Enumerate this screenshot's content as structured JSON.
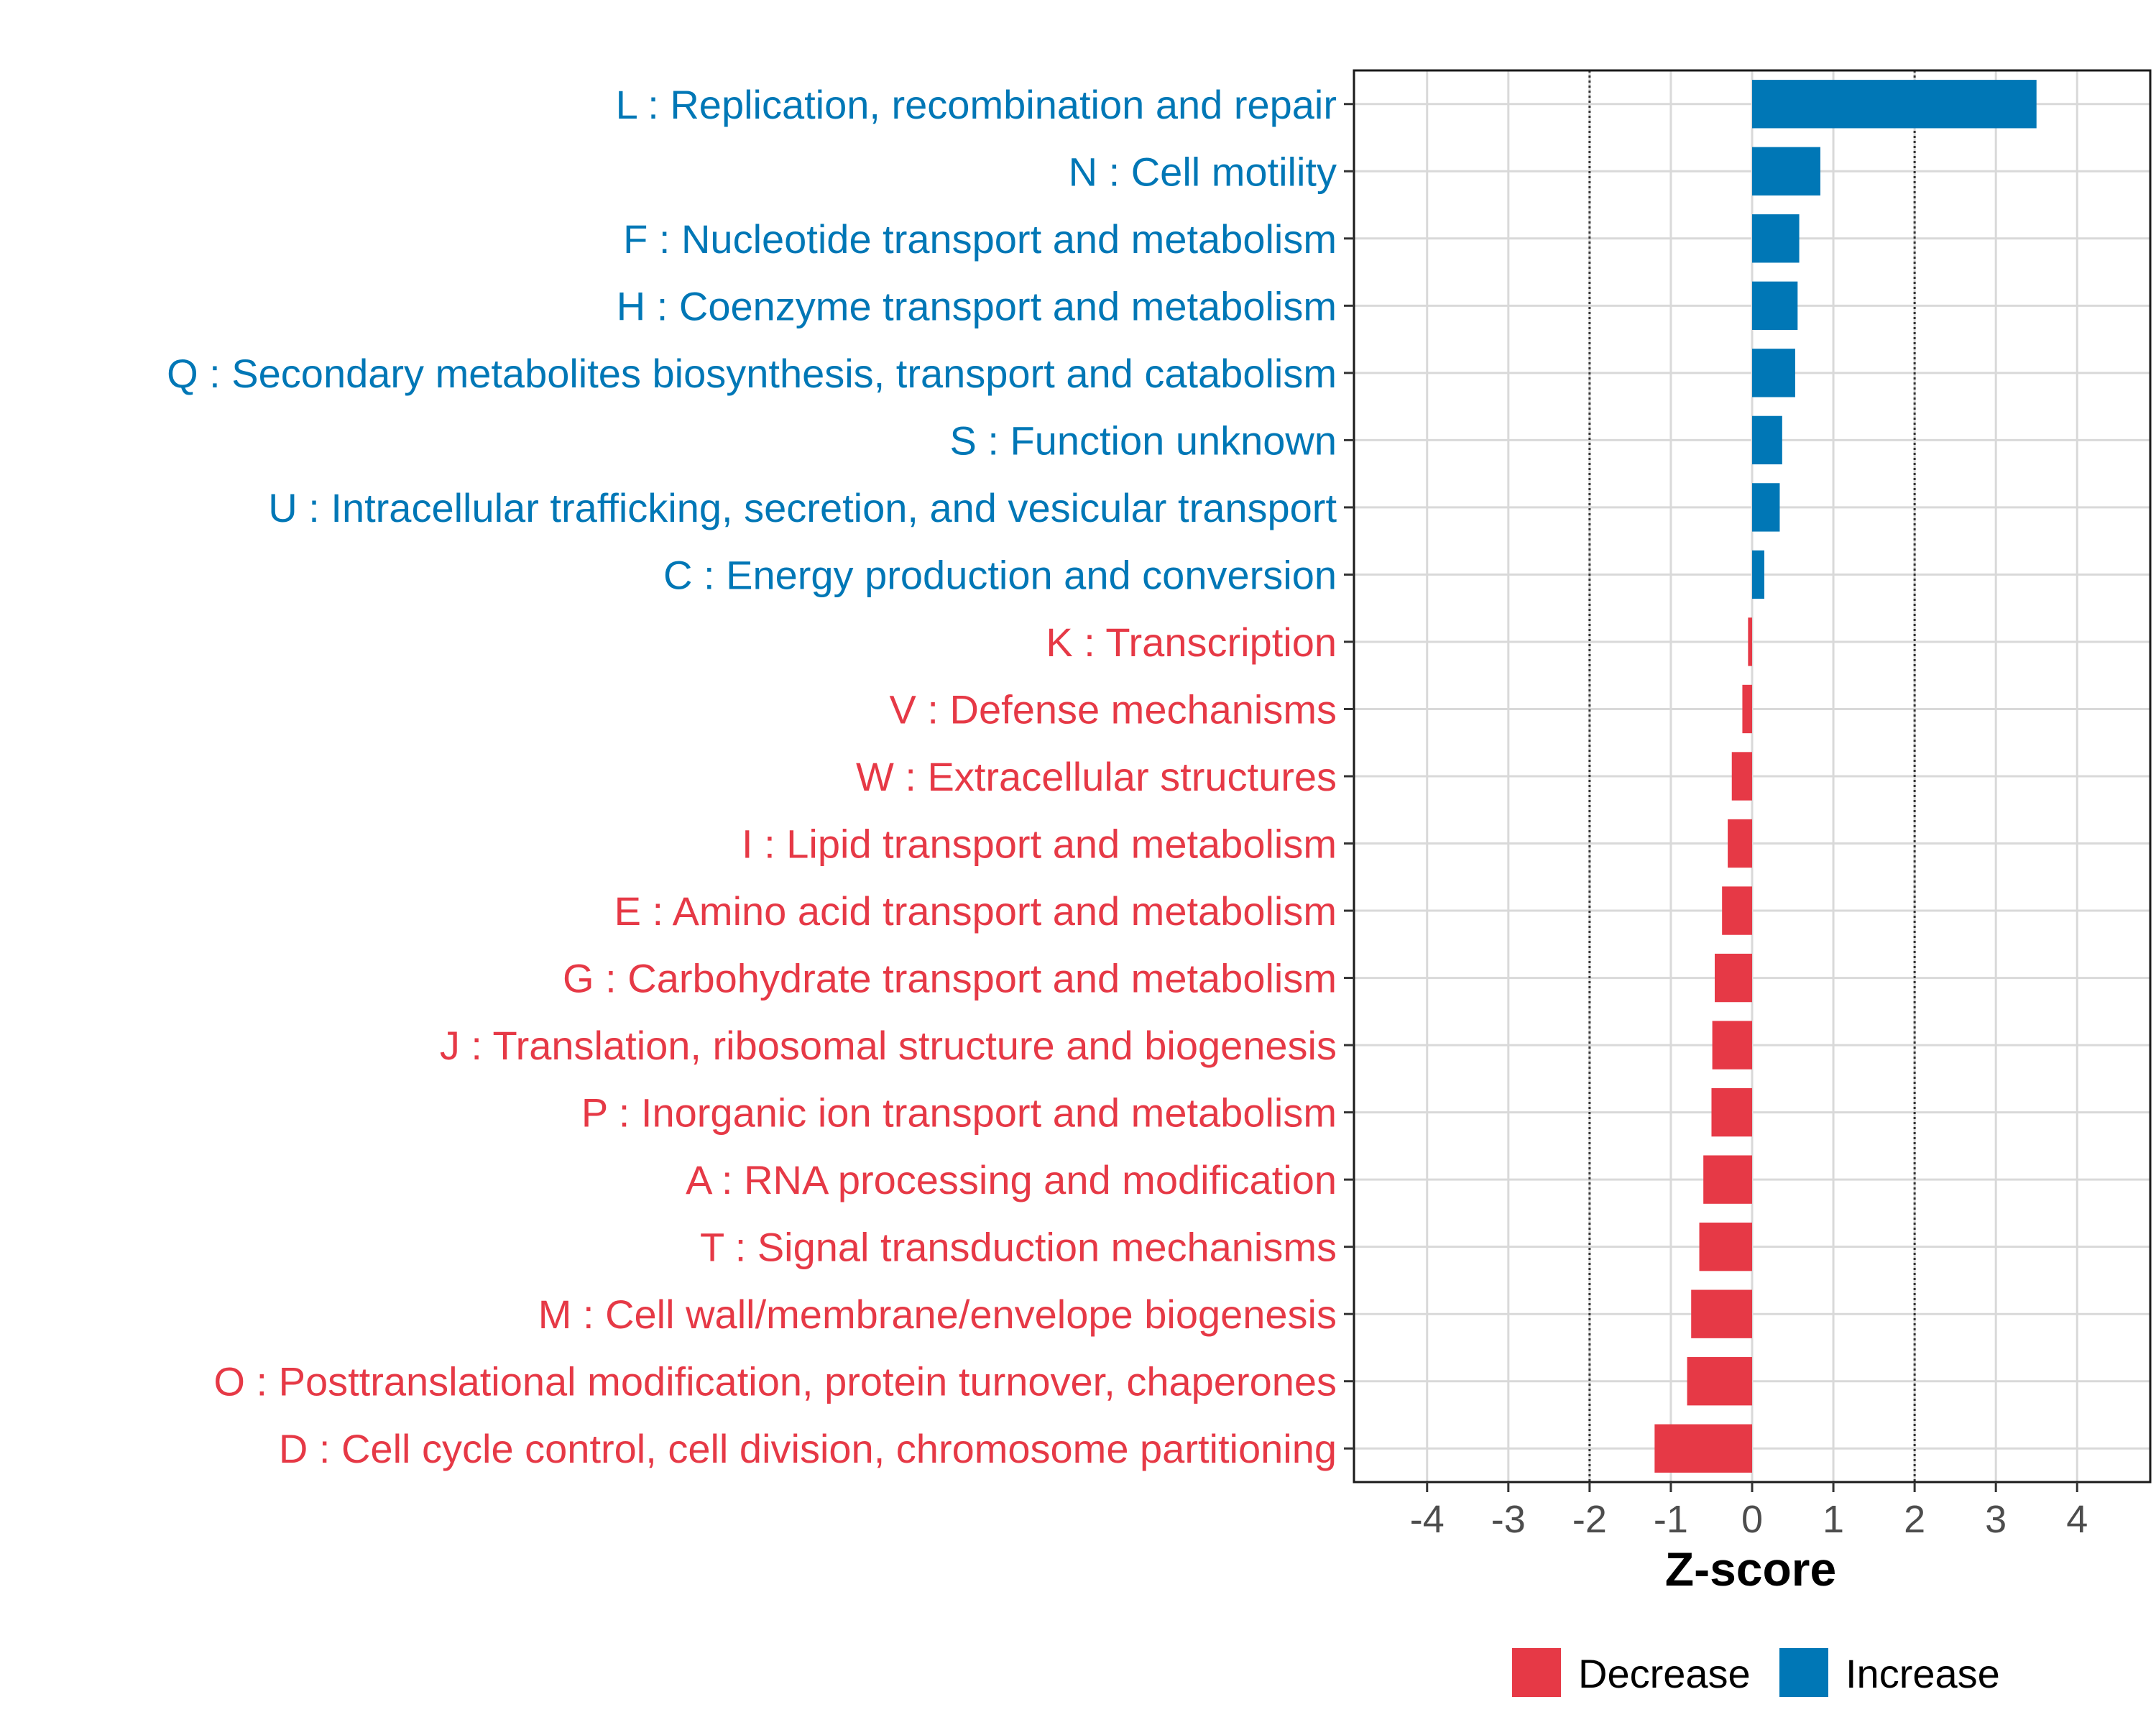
{
  "chart_data": {
    "type": "bar",
    "orientation": "horizontal",
    "xlabel": "Z-score",
    "xlim": [
      -4.9,
      4.9
    ],
    "xticks": [
      -4,
      -3,
      -2,
      -1,
      0,
      1,
      2,
      3,
      4
    ],
    "xtick_labels": [
      "-4",
      "-3",
      "-2",
      "-1",
      "0",
      "1",
      "2",
      "3",
      "4"
    ],
    "threshold_lines": [
      -2,
      2
    ],
    "grid": true,
    "categories": [
      "L : Replication, recombination and repair",
      "N : Cell motility",
      "F : Nucleotide transport and metabolism",
      "H : Coenzyme transport and metabolism",
      "Q : Secondary metabolites biosynthesis, transport and catabolism",
      "S : Function unknown",
      "U : Intracellular trafficking, secretion, and vesicular transport",
      "C : Energy production and conversion",
      "K : Transcription",
      "V : Defense mechanisms",
      "W : Extracellular structures",
      "I : Lipid transport and metabolism",
      "E : Amino acid transport and metabolism",
      "G : Carbohydrate transport and metabolism",
      "J : Translation, ribosomal structure and biogenesis",
      "P : Inorganic ion transport and metabolism",
      "A : RNA processing and modification",
      "T : Signal transduction mechanisms",
      "M : Cell wall/membrane/envelope biogenesis",
      "O : Posttranslational modification, protein turnover, chaperones",
      "D : Cell cycle control, cell division, chromosome partitioning"
    ],
    "values": [
      3.5,
      0.84,
      0.58,
      0.56,
      0.53,
      0.37,
      0.34,
      0.15,
      -0.05,
      -0.12,
      -0.25,
      -0.3,
      -0.37,
      -0.46,
      -0.49,
      -0.5,
      -0.6,
      -0.65,
      -0.75,
      -0.8,
      -1.2
    ],
    "groups": [
      "Increase",
      "Increase",
      "Increase",
      "Increase",
      "Increase",
      "Increase",
      "Increase",
      "Increase",
      "Decrease",
      "Decrease",
      "Decrease",
      "Decrease",
      "Decrease",
      "Decrease",
      "Decrease",
      "Decrease",
      "Decrease",
      "Decrease",
      "Decrease",
      "Decrease",
      "Decrease"
    ],
    "legend": {
      "position": "bottom-right",
      "entries": [
        {
          "label": "Decrease",
          "color": "#E63946"
        },
        {
          "label": "Increase",
          "color": "#0077B6"
        }
      ]
    }
  },
  "colors": {
    "increase": "#0077B6",
    "decrease": "#E63946",
    "grid": "#d9d9d9",
    "threshold": "#333333"
  }
}
